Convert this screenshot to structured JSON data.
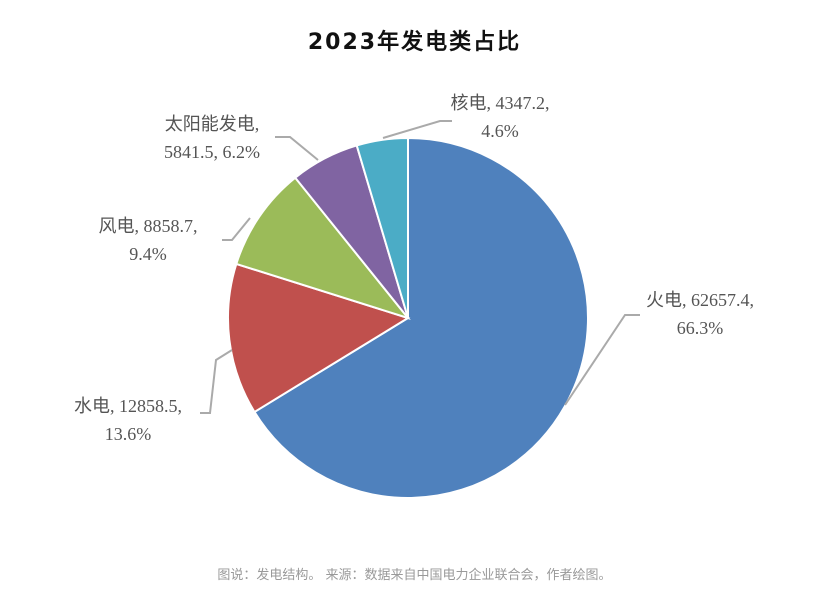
{
  "chart_data": {
    "type": "pie",
    "title": "2023年发电类占比",
    "start_angle": "top, clockwise",
    "slices": [
      {
        "name": "火电",
        "value": 62657.4,
        "percent": "66.3%",
        "color": "#4F81BD",
        "label_line1": "火电, 62657.4,",
        "label_line2": "66.3%"
      },
      {
        "name": "水电",
        "value": 12858.5,
        "percent": "13.6%",
        "color": "#C0504D",
        "label_line1": "水电, 12858.5,",
        "label_line2": "13.6%"
      },
      {
        "name": "风电",
        "value": 8858.7,
        "percent": "9.4%",
        "color": "#9BBB59",
        "label_line1": "风电, 8858.7,",
        "label_line2": "9.4%"
      },
      {
        "name": "太阳能发电",
        "value": 5841.5,
        "percent": "6.2%",
        "color": "#8064A2",
        "label_line1": "太阳能发电,",
        "label_line2": "5841.5, 6.2%"
      },
      {
        "name": "核电",
        "value": 4347.2,
        "percent": "4.6%",
        "color": "#4BACC6",
        "label_line1": "核电, 4347.2,",
        "label_line2": "4.6%"
      }
    ]
  },
  "caption": "图说：发电结构。 来源：数据来自中国电力企业联合会，作者绘图。"
}
